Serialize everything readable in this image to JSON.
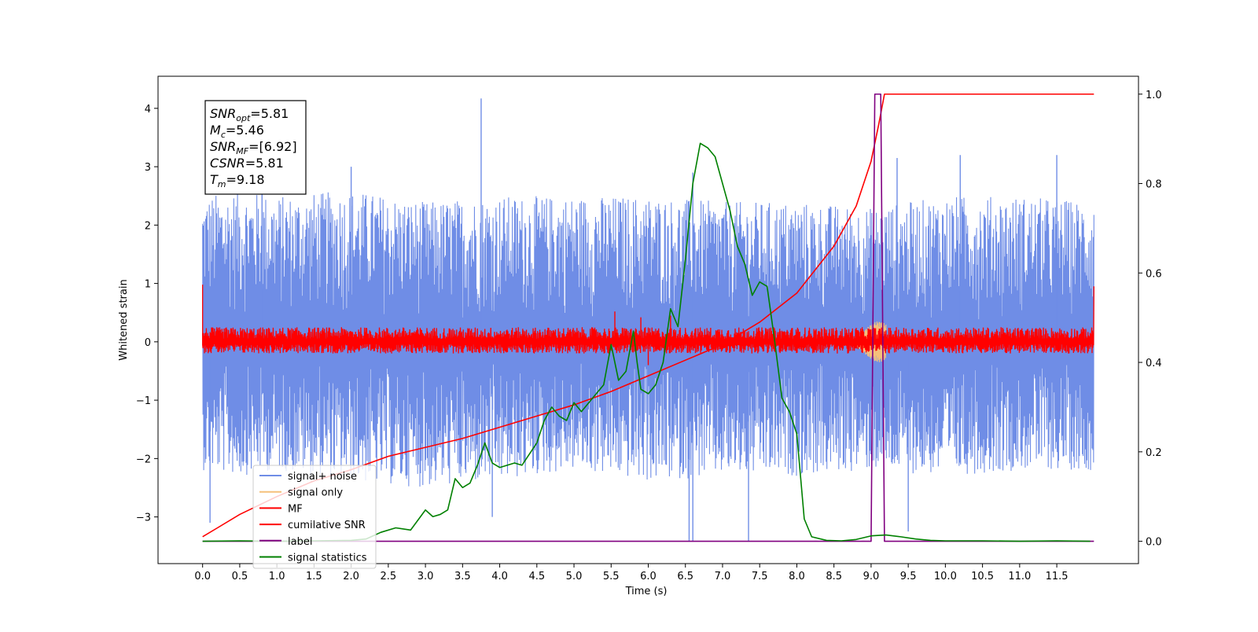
{
  "chart_data": {
    "type": "line",
    "xlabel": "Time (s)",
    "ylabel": "Whitened strain",
    "xlim": [
      -0.6,
      12.6
    ],
    "ylim_left": [
      -3.8,
      4.55
    ],
    "ylim_right": [
      -0.05,
      1.04
    ],
    "x_ticks": [
      "0.0",
      "0.5",
      "1.0",
      "1.5",
      "2.0",
      "2.5",
      "3.0",
      "3.5",
      "4.0",
      "4.5",
      "5.0",
      "5.5",
      "6.0",
      "6.5",
      "7.0",
      "7.5",
      "8.0",
      "8.5",
      "9.0",
      "9.5",
      "10.0",
      "10.5",
      "11.0",
      "11.5"
    ],
    "y_ticks_left": [
      "4",
      "3",
      "2",
      "1",
      "0",
      "−1",
      "−2",
      "−3"
    ],
    "y_ticks_right": [
      "1.0",
      "0.8",
      "0.6",
      "0.4",
      "0.2",
      "0.0"
    ],
    "info_box": [
      {
        "sym": "SNR",
        "sub": "opt",
        "val": "=5.81"
      },
      {
        "sym": "M",
        "sub": "c",
        "val": "=5.46"
      },
      {
        "sym": "SNR",
        "sub": "MF",
        "val": "=[6.92]"
      },
      {
        "sym": "CSNR",
        "sub": "",
        "val": "=5.81"
      },
      {
        "sym": "T",
        "sub": "m",
        "val": "=9.18"
      }
    ],
    "legend": {
      "placement": "lower-left",
      "entries": [
        {
          "label": "signal+ noise",
          "color": "#6f8de6"
        },
        {
          "label": "signal only",
          "color": "#f5c07a"
        },
        {
          "label": "MF",
          "color": "#ff0000"
        },
        {
          "label": "cumilative SNR",
          "color": "#ff0000"
        },
        {
          "label": "label",
          "color": "#800080"
        },
        {
          "label": "signal statistics",
          "color": "#008000"
        }
      ]
    },
    "noise_envelope": {
      "x": [
        0.0,
        0.5,
        1.0,
        2.0,
        3.0,
        4.0,
        5.0,
        6.0,
        7.0,
        8.0,
        9.0,
        10.0,
        11.0,
        12.0
      ],
      "upper": [
        2.6,
        2.7,
        2.6,
        2.7,
        2.5,
        2.6,
        2.6,
        2.6,
        2.5,
        2.5,
        2.4,
        2.6,
        2.6,
        2.5
      ],
      "lower": [
        -2.3,
        -2.4,
        -2.3,
        -2.5,
        -2.6,
        -2.5,
        -2.3,
        -2.5,
        -2.4,
        -2.4,
        -2.3,
        -2.4,
        -2.3,
        -2.3
      ],
      "peaks": [
        [
          3.75,
          4.17
        ],
        [
          0.8,
          3.1
        ],
        [
          2.0,
          3.0
        ],
        [
          6.6,
          2.9
        ],
        [
          9.35,
          3.15
        ],
        [
          10.2,
          3.2
        ],
        [
          11.5,
          3.2
        ],
        [
          6.55,
          -3.42
        ],
        [
          6.6,
          -3.42
        ],
        [
          7.35,
          -3.42
        ],
        [
          9.5,
          -3.25
        ],
        [
          0.1,
          -3.1
        ],
        [
          3.9,
          -3.0
        ]
      ]
    },
    "mf_band": {
      "upper": 0.25,
      "lower": -0.2,
      "spikes": [
        [
          5.55,
          0.52
        ],
        [
          5.9,
          0.42
        ],
        [
          6.3,
          0.45
        ],
        [
          6.0,
          -0.4
        ]
      ]
    },
    "signal_only": {
      "center": 9.1,
      "amplitude": 0.35
    },
    "cumulative_snr": {
      "x": [
        0.0,
        0.2,
        0.5,
        1.0,
        1.5,
        2.0,
        2.5,
        3.0,
        3.5,
        4.0,
        4.5,
        5.0,
        5.5,
        6.0,
        6.5,
        7.0,
        7.5,
        8.0,
        8.5,
        8.8,
        9.0,
        9.1,
        9.18,
        12.0
      ],
      "y": [
        0.01,
        0.03,
        0.06,
        0.1,
        0.135,
        0.16,
        0.19,
        0.21,
        0.23,
        0.255,
        0.28,
        0.305,
        0.335,
        0.37,
        0.405,
        0.44,
        0.49,
        0.555,
        0.66,
        0.75,
        0.85,
        0.93,
        1.0,
        1.0
      ]
    },
    "label_series": {
      "x": [
        0.0,
        9.0,
        9.05,
        9.13,
        9.18,
        12.0
      ],
      "y": [
        0.0,
        0.0,
        1.0,
        1.0,
        0.0,
        0.0
      ]
    },
    "signal_statistics": {
      "x": [
        0.0,
        0.5,
        1.0,
        1.5,
        2.0,
        2.2,
        2.4,
        2.6,
        2.8,
        3.0,
        3.1,
        3.2,
        3.3,
        3.4,
        3.5,
        3.6,
        3.7,
        3.8,
        3.9,
        4.0,
        4.1,
        4.2,
        4.3,
        4.5,
        4.6,
        4.7,
        4.8,
        4.9,
        5.0,
        5.1,
        5.2,
        5.3,
        5.4,
        5.5,
        5.6,
        5.7,
        5.8,
        5.85,
        5.9,
        6.0,
        6.1,
        6.2,
        6.3,
        6.4,
        6.5,
        6.6,
        6.7,
        6.8,
        6.9,
        7.0,
        7.1,
        7.2,
        7.3,
        7.4,
        7.5,
        7.6,
        7.7,
        7.8,
        7.9,
        8.0,
        8.1,
        8.2,
        8.4,
        8.6,
        8.8,
        9.0,
        9.2,
        9.4,
        9.6,
        9.8,
        10.0,
        10.5,
        11.0,
        11.5,
        11.95
      ],
      "y": [
        0.0,
        0.001,
        0.0,
        0.001,
        0.002,
        0.005,
        0.02,
        0.03,
        0.025,
        0.07,
        0.055,
        0.06,
        0.07,
        0.14,
        0.12,
        0.13,
        0.17,
        0.22,
        0.175,
        0.165,
        0.17,
        0.175,
        0.17,
        0.22,
        0.27,
        0.3,
        0.28,
        0.27,
        0.31,
        0.29,
        0.31,
        0.33,
        0.35,
        0.44,
        0.36,
        0.38,
        0.47,
        0.4,
        0.34,
        0.33,
        0.35,
        0.4,
        0.52,
        0.48,
        0.63,
        0.8,
        0.89,
        0.88,
        0.86,
        0.8,
        0.74,
        0.66,
        0.62,
        0.55,
        0.58,
        0.57,
        0.45,
        0.32,
        0.29,
        0.24,
        0.05,
        0.01,
        0.002,
        0.001,
        0.004,
        0.012,
        0.014,
        0.01,
        0.005,
        0.002,
        0.001,
        0.001,
        0.0,
        0.001,
        0.0
      ]
    }
  }
}
